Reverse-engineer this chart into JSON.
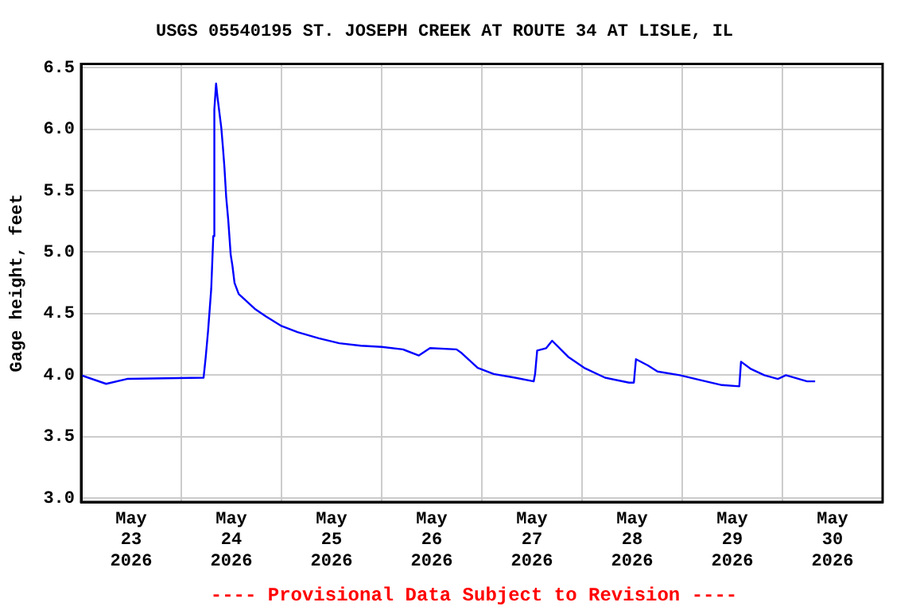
{
  "chart_data": {
    "type": "line",
    "title": "USGS 05540195 ST. JOSEPH CREEK AT ROUTE 34 AT LISLE, IL",
    "ylabel": "Gage height, feet",
    "annotations": [
      "---- Provisional Data Subject to Revision ----"
    ],
    "x": [
      "2026-05-23T00:00",
      "2026-05-23T06:00",
      "2026-05-23T11:00",
      "2026-05-24T05:20",
      "2026-05-24T05:50",
      "2026-05-24T06:25",
      "2026-05-24T07:10",
      "2026-05-24T07:40",
      "2026-05-24T07:55",
      "2026-05-24T08:20",
      "2026-05-24T08:40",
      "2026-05-24T09:35",
      "2026-05-24T10:00",
      "2026-05-24T10:20",
      "2026-05-24T10:45",
      "2026-05-24T11:15",
      "2026-05-24T11:50",
      "2026-05-24T12:15",
      "2026-05-24T12:45",
      "2026-05-24T13:45",
      "2026-05-24T15:40",
      "2026-05-24T17:35",
      "2026-05-24T20:10",
      "2026-05-25T00:00",
      "2026-05-25T03:50",
      "2026-05-25T08:55",
      "2026-05-25T13:50",
      "2026-05-25T19:00",
      "2026-05-26T00:00",
      "2026-05-26T05:05",
      "2026-05-26T08:55",
      "2026-05-26T11:35",
      "2026-05-26T17:55",
      "2026-05-26T19:10",
      "2026-05-26T21:05",
      "2026-05-26T23:00",
      "2026-05-27T02:50",
      "2026-05-27T07:55",
      "2026-05-27T12:25",
      "2026-05-27T12:45",
      "2026-05-27T13:15",
      "2026-05-27T15:25",
      "2026-05-27T16:50",
      "2026-05-27T20:40",
      "2026-05-28T00:30",
      "2026-05-28T05:30",
      "2026-05-28T11:15",
      "2026-05-28T12:25",
      "2026-05-28T12:55",
      "2026-05-28T15:45",
      "2026-05-28T18:05",
      "2026-05-28T23:25",
      "2026-05-29T04:25",
      "2026-05-29T09:30",
      "2026-05-29T13:40",
      "2026-05-29T14:05",
      "2026-05-29T16:30",
      "2026-05-29T19:40",
      "2026-05-29T22:55",
      "2026-05-30T00:50",
      "2026-05-30T05:55",
      "2026-05-30T07:50"
    ],
    "series": [
      {
        "color": "#0000ff",
        "values": [
          4.0,
          3.93,
          3.97,
          3.98,
          4.14,
          4.36,
          4.7,
          5.13,
          6.16,
          6.37,
          6.26,
          6.01,
          5.84,
          5.69,
          5.45,
          5.26,
          4.98,
          4.89,
          4.75,
          4.66,
          4.6,
          4.54,
          4.48,
          4.4,
          4.35,
          4.3,
          4.26,
          4.24,
          4.23,
          4.21,
          4.16,
          4.22,
          4.21,
          4.18,
          4.12,
          4.06,
          4.01,
          3.98,
          3.95,
          4.01,
          4.2,
          4.22,
          4.28,
          4.15,
          4.06,
          3.98,
          3.94,
          3.94,
          4.13,
          4.08,
          4.03,
          4.0,
          3.96,
          3.92,
          3.91,
          4.11,
          4.05,
          4.0,
          3.97,
          4.0,
          3.95,
          3.95
        ]
      }
    ],
    "xlim": [
      "2026-05-23T00:00",
      "2026-05-31T00:00"
    ],
    "xticks": [
      {
        "value": "2026-05-23T00:00",
        "label": null
      },
      {
        "value": "2026-05-23T12:00",
        "label": "May 23 2026"
      },
      {
        "value": "2026-05-24T00:00",
        "label": null
      },
      {
        "value": "2026-05-24T12:00",
        "label": "May 24 2026"
      },
      {
        "value": "2026-05-25T00:00",
        "label": null
      },
      {
        "value": "2026-05-25T12:00",
        "label": "May 25 2026"
      },
      {
        "value": "2026-05-26T00:00",
        "label": null
      },
      {
        "value": "2026-05-26T12:00",
        "label": "May 26 2026"
      },
      {
        "value": "2026-05-27T00:00",
        "label": null
      },
      {
        "value": "2026-05-27T12:00",
        "label": "May 27 2026"
      },
      {
        "value": "2026-05-28T00:00",
        "label": null
      },
      {
        "value": "2026-05-28T12:00",
        "label": "May 28 2026"
      },
      {
        "value": "2026-05-29T00:00",
        "label": null
      },
      {
        "value": "2026-05-29T12:00",
        "label": "May 29 2026"
      },
      {
        "value": "2026-05-30T00:00",
        "label": null
      },
      {
        "value": "2026-05-30T12:00",
        "label": "May 30 2026"
      },
      {
        "value": "2026-05-31T00:00",
        "label": null
      }
    ],
    "ylim": [
      2.97,
      6.53
    ],
    "yticks": [
      {
        "value": 3.0,
        "label": "3.0"
      },
      {
        "value": 3.5,
        "label": "3.5"
      },
      {
        "value": 4.0,
        "label": "4.0"
      },
      {
        "value": 4.5,
        "label": "4.5"
      },
      {
        "value": 5.0,
        "label": "5.0"
      },
      {
        "value": 5.5,
        "label": "5.5"
      },
      {
        "value": 6.0,
        "label": "6.0"
      },
      {
        "value": 6.5,
        "label": "6.5"
      }
    ],
    "grid": true,
    "legend": false,
    "marker": "none",
    "line_style": "solid"
  }
}
